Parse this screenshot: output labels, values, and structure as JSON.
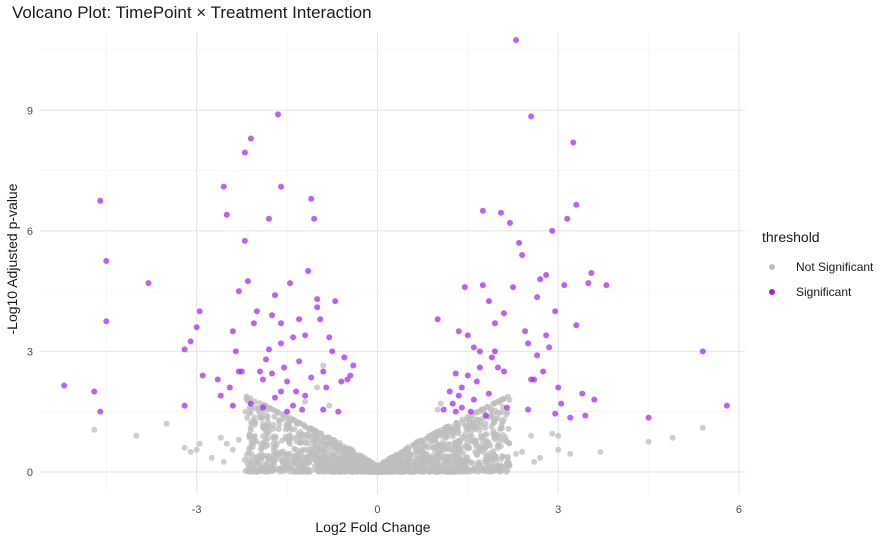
{
  "chart_data": {
    "type": "scatter",
    "title": "Volcano Plot: TimePoint × Treatment Interaction",
    "xlabel": "Log2 Fold Change",
    "ylabel": "-Log10 Adjusted p-value",
    "xlim": [
      -5.6,
      6.1
    ],
    "ylim": [
      -0.55,
      10.95
    ],
    "x_ticks": [
      -3,
      0,
      3,
      6
    ],
    "y_ticks": [
      0,
      3,
      6,
      9
    ],
    "grid": true,
    "legend_title": "threshold",
    "legend_position": "right",
    "series": [
      {
        "name": "Not Significant",
        "color": "#bebebe",
        "points": [
          [
            -4.7,
            1.05
          ],
          [
            -4.0,
            0.9
          ],
          [
            -3.5,
            1.2
          ],
          [
            -3.2,
            0.6
          ],
          [
            -3.1,
            0.5
          ],
          [
            -3.0,
            0.55
          ],
          [
            -2.95,
            0.7
          ],
          [
            -2.75,
            0.35
          ],
          [
            -2.6,
            0.85
          ],
          [
            -2.55,
            0.25
          ],
          [
            -2.4,
            0.55
          ],
          [
            -2.5,
            0.7
          ],
          [
            -2.3,
            0.8
          ],
          [
            -2.2,
            0.3
          ],
          [
            -1.2,
            1.75
          ],
          [
            -1.0,
            2.1
          ],
          [
            -0.9,
            2.65
          ],
          [
            -0.8,
            1.65
          ],
          [
            1.0,
            1.55
          ],
          [
            1.05,
            1.7
          ],
          [
            1.5,
            1.1
          ],
          [
            1.7,
            0.55
          ],
          [
            1.9,
            0.35
          ],
          [
            2.0,
            0.6
          ],
          [
            2.3,
            0.45
          ],
          [
            2.4,
            0.5
          ],
          [
            2.6,
            0.25
          ],
          [
            2.55,
            0.9
          ],
          [
            2.7,
            0.35
          ],
          [
            2.9,
            0.95
          ],
          [
            3.0,
            0.9
          ],
          [
            3.0,
            0.55
          ],
          [
            3.2,
            0.45
          ],
          [
            3.7,
            0.5
          ],
          [
            4.5,
            0.75
          ],
          [
            4.9,
            0.85
          ],
          [
            5.4,
            1.1
          ]
        ]
      },
      {
        "name": "Significant",
        "color": "#a020f0",
        "points": [
          [
            -5.2,
            2.15
          ],
          [
            -4.7,
            2.0
          ],
          [
            -4.6,
            1.5
          ],
          [
            -4.6,
            6.75
          ],
          [
            -4.5,
            3.75
          ],
          [
            -4.5,
            5.25
          ],
          [
            -3.8,
            4.7
          ],
          [
            -3.2,
            3.05
          ],
          [
            -3.1,
            3.25
          ],
          [
            -3.0,
            3.6
          ],
          [
            -2.95,
            4.0
          ],
          [
            -2.9,
            2.4
          ],
          [
            -2.65,
            2.3
          ],
          [
            -2.6,
            1.9
          ],
          [
            -2.55,
            7.1
          ],
          [
            -2.5,
            6.4
          ],
          [
            -2.45,
            2.1
          ],
          [
            -2.4,
            1.65
          ],
          [
            -2.35,
            3.0
          ],
          [
            -2.3,
            4.5
          ],
          [
            -2.3,
            2.5
          ],
          [
            -2.2,
            7.95
          ],
          [
            -2.2,
            5.75
          ],
          [
            -2.15,
            4.75
          ],
          [
            -2.1,
            8.3
          ],
          [
            -2.1,
            1.7
          ],
          [
            -2.05,
            3.7
          ],
          [
            -1.95,
            2.5
          ],
          [
            -1.9,
            2.3
          ],
          [
            -1.85,
            2.8
          ],
          [
            -1.8,
            6.3
          ],
          [
            -1.75,
            3.9
          ],
          [
            -1.7,
            4.4
          ],
          [
            -1.7,
            1.85
          ],
          [
            -1.65,
            8.9
          ],
          [
            -1.6,
            7.1
          ],
          [
            -1.6,
            3.2
          ],
          [
            -1.55,
            2.6
          ],
          [
            -1.5,
            2.25
          ],
          [
            -1.5,
            1.5
          ],
          [
            -1.45,
            4.7
          ],
          [
            -1.4,
            3.35
          ],
          [
            -1.35,
            2.0
          ],
          [
            -1.3,
            2.75
          ],
          [
            -1.25,
            1.55
          ],
          [
            -1.2,
            3.4
          ],
          [
            -1.15,
            5.0
          ],
          [
            -1.1,
            2.35
          ],
          [
            -1.1,
            6.8
          ],
          [
            -1.05,
            6.3
          ],
          [
            -1.0,
            4.1
          ],
          [
            -1.0,
            4.3
          ],
          [
            -0.95,
            3.8
          ],
          [
            -0.9,
            2.5
          ],
          [
            -0.9,
            1.55
          ],
          [
            -0.85,
            2.1
          ],
          [
            -0.8,
            3.35
          ],
          [
            -0.75,
            3.0
          ],
          [
            -0.7,
            4.25
          ],
          [
            -0.65,
            1.5
          ],
          [
            -0.6,
            2.25
          ],
          [
            -0.5,
            2.3
          ],
          [
            -0.45,
            2.4
          ],
          [
            -0.4,
            2.65
          ],
          [
            -1.8,
            3.05
          ],
          [
            -1.6,
            2.0
          ],
          [
            -1.9,
            1.6
          ],
          [
            -2.25,
            2.5
          ],
          [
            -1.75,
            2.45
          ],
          [
            -1.2,
            1.9
          ],
          [
            -1.4,
            1.65
          ],
          [
            -2.0,
            4.0
          ],
          [
            -0.55,
            2.85
          ],
          [
            -1.3,
            3.8
          ],
          [
            -1.6,
            3.7
          ],
          [
            -2.4,
            3.5
          ],
          [
            -3.2,
            1.65
          ],
          [
            1.0,
            3.8
          ],
          [
            1.1,
            1.55
          ],
          [
            1.2,
            2.0
          ],
          [
            1.25,
            1.7
          ],
          [
            1.3,
            2.45
          ],
          [
            1.35,
            1.9
          ],
          [
            1.35,
            3.5
          ],
          [
            1.4,
            2.1
          ],
          [
            1.4,
            1.6
          ],
          [
            1.45,
            4.6
          ],
          [
            1.5,
            2.4
          ],
          [
            1.5,
            3.4
          ],
          [
            1.55,
            1.5
          ],
          [
            1.6,
            1.8
          ],
          [
            1.65,
            2.25
          ],
          [
            1.7,
            2.6
          ],
          [
            1.7,
            3.0
          ],
          [
            1.75,
            4.65
          ],
          [
            1.75,
            6.5
          ],
          [
            1.8,
            1.4
          ],
          [
            1.85,
            4.25
          ],
          [
            1.9,
            2.85
          ],
          [
            1.95,
            3.0
          ],
          [
            2.0,
            2.6
          ],
          [
            2.05,
            6.45
          ],
          [
            2.1,
            3.95
          ],
          [
            2.15,
            1.6
          ],
          [
            2.2,
            6.2
          ],
          [
            2.25,
            4.6
          ],
          [
            2.3,
            10.75
          ],
          [
            2.35,
            5.7
          ],
          [
            2.4,
            5.4
          ],
          [
            2.45,
            3.5
          ],
          [
            2.5,
            3.2
          ],
          [
            2.5,
            1.55
          ],
          [
            2.55,
            8.85
          ],
          [
            2.6,
            2.3
          ],
          [
            2.65,
            4.35
          ],
          [
            2.7,
            4.8
          ],
          [
            2.75,
            2.5
          ],
          [
            2.8,
            4.9
          ],
          [
            2.85,
            3.1
          ],
          [
            2.9,
            6.0
          ],
          [
            2.95,
            1.45
          ],
          [
            3.0,
            2.1
          ],
          [
            3.05,
            1.7
          ],
          [
            3.1,
            4.65
          ],
          [
            3.15,
            6.3
          ],
          [
            3.2,
            1.35
          ],
          [
            3.25,
            8.2
          ],
          [
            3.3,
            6.65
          ],
          [
            3.3,
            3.65
          ],
          [
            3.4,
            1.95
          ],
          [
            3.45,
            1.4
          ],
          [
            3.5,
            4.7
          ],
          [
            3.55,
            4.95
          ],
          [
            3.6,
            1.8
          ],
          [
            3.8,
            4.65
          ],
          [
            4.5,
            1.35
          ],
          [
            5.4,
            3.0
          ],
          [
            5.8,
            1.65
          ],
          [
            2.8,
            3.4
          ],
          [
            1.6,
            3.1
          ],
          [
            1.85,
            1.95
          ],
          [
            2.1,
            2.5
          ],
          [
            1.3,
            1.5
          ],
          [
            1.95,
            3.7
          ],
          [
            2.95,
            4.0
          ],
          [
            2.55,
            2.3
          ],
          [
            2.65,
            2.9
          ]
        ]
      }
    ]
  }
}
